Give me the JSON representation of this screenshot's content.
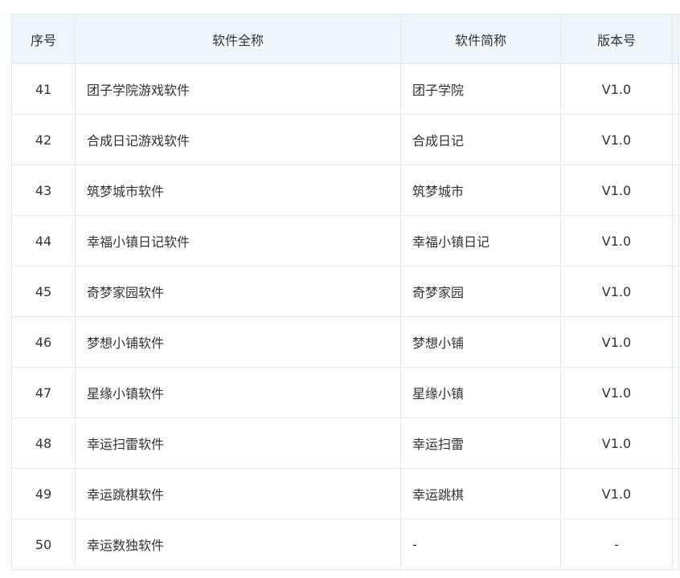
{
  "table": {
    "headers": [
      "序号",
      "软件全称",
      "软件简称",
      "版本号"
    ],
    "rows": [
      {
        "no": "41",
        "full": "团子学院游戏软件",
        "short": "团子学院",
        "ver": "V1.0"
      },
      {
        "no": "42",
        "full": "合成日记游戏软件",
        "short": "合成日记",
        "ver": "V1.0"
      },
      {
        "no": "43",
        "full": "筑梦城市软件",
        "short": "筑梦城市",
        "ver": "V1.0"
      },
      {
        "no": "44",
        "full": "幸福小镇日记软件",
        "short": "幸福小镇日记",
        "ver": "V1.0"
      },
      {
        "no": "45",
        "full": "奇梦家园软件",
        "short": "奇梦家园",
        "ver": "V1.0"
      },
      {
        "no": "46",
        "full": "梦想小铺软件",
        "short": "梦想小铺",
        "ver": "V1.0"
      },
      {
        "no": "47",
        "full": "星缘小镇软件",
        "short": "星缘小镇",
        "ver": "V1.0"
      },
      {
        "no": "48",
        "full": "幸运扫雷软件",
        "short": "幸运扫雷",
        "ver": "V1.0"
      },
      {
        "no": "49",
        "full": "幸运跳棋软件",
        "short": "幸运跳棋",
        "ver": "V1.0"
      },
      {
        "no": "50",
        "full": "幸运数独软件",
        "short": "-",
        "ver": "-"
      }
    ]
  }
}
